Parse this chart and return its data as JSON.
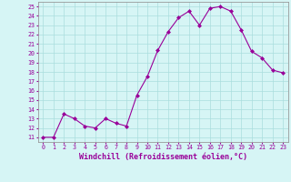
{
  "x": [
    0,
    1,
    2,
    3,
    4,
    5,
    6,
    7,
    8,
    9,
    10,
    11,
    12,
    13,
    14,
    15,
    16,
    17,
    18,
    19,
    20,
    21,
    22,
    23
  ],
  "y": [
    11,
    11,
    13.5,
    13,
    12.2,
    12,
    13,
    12.5,
    12.2,
    15.5,
    17.5,
    20.3,
    22.3,
    23.8,
    24.5,
    23,
    24.8,
    25,
    24.5,
    22.5,
    20.2,
    19.5,
    18.2,
    17.9
  ],
  "line_color": "#990099",
  "marker": "D",
  "marker_size": 2.0,
  "bg_color": "#d6f5f5",
  "grid_color": "#aadddd",
  "ylabel_ticks": [
    11,
    12,
    13,
    14,
    15,
    16,
    17,
    18,
    19,
    20,
    21,
    22,
    23,
    24,
    25
  ],
  "ylim": [
    10.5,
    25.5
  ],
  "xlim": [
    -0.5,
    23.5
  ],
  "xlabel": "Windchill (Refroidissement éolien,°C)",
  "tick_fontsize": 4.8,
  "label_fontsize": 6.0
}
